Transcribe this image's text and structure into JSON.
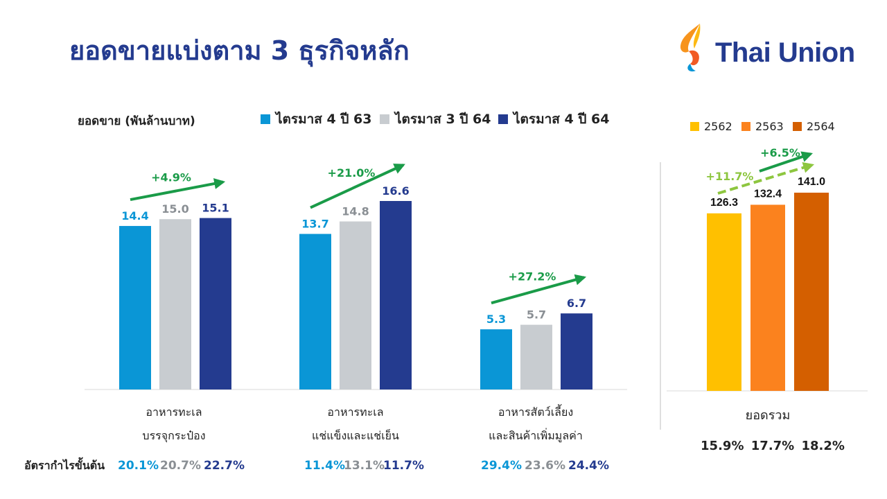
{
  "title": "ยอดขายแบ่งตาม 3 ธุรกิจหลัก",
  "logo": {
    "text": "Thai Union"
  },
  "colors": {
    "q4_63": "#0a96d6",
    "q3_64": "#c8ccd0",
    "q4_64": "#243b8f",
    "y2562": "#ffc000",
    "y2563": "#fb821e",
    "y2564": "#d45f00",
    "arrow": "#1a9b48",
    "arrow_dashed": "#8dc63f"
  },
  "chart_data": [
    {
      "type": "bar",
      "ylabel": "ยอดขาย (พันล้านบาท)",
      "categories": [
        "อาหารทะเล\nบรรจุกระป๋อง",
        "อาหารทะเล\nแช่แข็งและแช่เย็น",
        "อาหารสัตว์เลี้ยง\nและสินค้าเพิ่มมูลค่า"
      ],
      "series": [
        {
          "name": "ไตรมาส 4 ปี 63",
          "values": [
            14.4,
            13.7,
            5.3
          ]
        },
        {
          "name": "ไตรมาส 3 ปี 64",
          "values": [
            15.0,
            14.8,
            5.7
          ]
        },
        {
          "name": "ไตรมาส 4 ปี 64",
          "values": [
            15.1,
            16.6,
            6.7
          ]
        }
      ],
      "growth_annotations": [
        "+4.9%",
        "+21.0%",
        "+27.2%"
      ],
      "ylim": [
        0,
        20
      ],
      "legend": "top",
      "grid": false
    },
    {
      "type": "bar",
      "categories": [
        "ยอดรวม"
      ],
      "series": [
        {
          "name": "2562",
          "values": [
            126.3
          ]
        },
        {
          "name": "2563",
          "values": [
            132.4
          ]
        },
        {
          "name": "2564",
          "values": [
            141.0
          ]
        }
      ],
      "growth_annotations": [
        "+6.5%",
        "+11.7%"
      ],
      "ylim": [
        0,
        175
      ],
      "legend": "top",
      "grid": false
    }
  ],
  "margins": {
    "label": "อัตรากำไรขั้นต้น",
    "groups": [
      [
        "20.1%",
        "20.7%",
        "22.7%"
      ],
      [
        "11.4%",
        "13.1%",
        "11.7%"
      ],
      [
        "29.4%",
        "23.6%",
        "24.4%"
      ]
    ],
    "total": [
      "15.9%",
      "17.7%",
      "18.2%"
    ]
  }
}
